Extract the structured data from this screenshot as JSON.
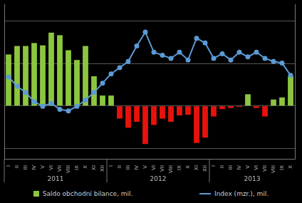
{
  "chart_data": {
    "type": "bar",
    "categories": [
      "I",
      "II",
      "III",
      "IV",
      "V",
      "VI",
      "VII",
      "VIII",
      "IX",
      "X",
      "XI",
      "XII",
      "I",
      "II",
      "III",
      "IV",
      "V",
      "VI",
      "VII",
      "VIII",
      "IX",
      "X",
      "XI",
      "XII",
      "I",
      "II",
      "III",
      "IV",
      "V",
      "VI",
      "VII",
      "VIII",
      "IX",
      "X"
    ],
    "groups": [
      {
        "label": "2011",
        "start": 0,
        "end": 11
      },
      {
        "label": "2012",
        "start": 12,
        "end": 23
      },
      {
        "label": "2013",
        "start": 24,
        "end": 33
      }
    ],
    "series": [
      {
        "name": "Saldo obchodní bilance, mil.",
        "type": "bar",
        "color": "#8cc63f",
        "colors": [
          "#8cc63f",
          "#8cc63f",
          "#8cc63f",
          "#8cc63f",
          "#8cc63f",
          "#8cc63f",
          "#8cc63f",
          "#8cc63f",
          "#8cc63f",
          "#8cc63f",
          "#8cc63f",
          "#8cc63f",
          "#8cc63f",
          "#e8120c",
          "#e8120c",
          "#e8120c",
          "#e8120c",
          "#e8120c",
          "#e8120c",
          "#e8120c",
          "#e8120c",
          "#e8120c",
          "#e8120c",
          "#e8120c",
          "#e8120c",
          "#e8120c",
          "#e8120c",
          "#e8120c",
          "#8cc63f",
          "#e8120c",
          "#e8120c",
          "#8cc63f",
          "#8cc63f",
          "#8cc63f"
        ],
        "values": [
          2430,
          2830,
          2830,
          2970,
          2860,
          3460,
          3340,
          2630,
          2170,
          2830,
          1400,
          490,
          490,
          -600,
          -1030,
          -750,
          -1800,
          -900,
          -600,
          -750,
          -450,
          -420,
          -1750,
          -1500,
          -500,
          -150,
          -100,
          -50,
          550,
          -100,
          -500,
          300,
          400,
          1400
        ]
      },
      {
        "name": "Index (mzr.), mil.",
        "type": "line",
        "color": "#5b9bd5",
        "marker": "circle",
        "axis": "y2",
        "values": [
          53,
          47,
          43,
          37,
          34,
          36,
          32,
          31,
          34,
          38,
          43,
          49,
          55,
          59,
          63,
          73,
          82,
          69,
          67,
          65,
          69,
          64,
          78,
          75,
          65,
          68,
          64,
          69,
          66,
          69,
          65,
          63,
          62,
          54
        ]
      }
    ],
    "ylim": [
      -2500,
      4800
    ],
    "yticks": [
      -2000,
      0,
      2000,
      4000
    ],
    "y2lim": [
      0,
      100
    ],
    "y2ticks": [
      0,
      20,
      40,
      60,
      80,
      100
    ],
    "grid": true,
    "tick_labels": "x",
    "legend": "bottom"
  }
}
